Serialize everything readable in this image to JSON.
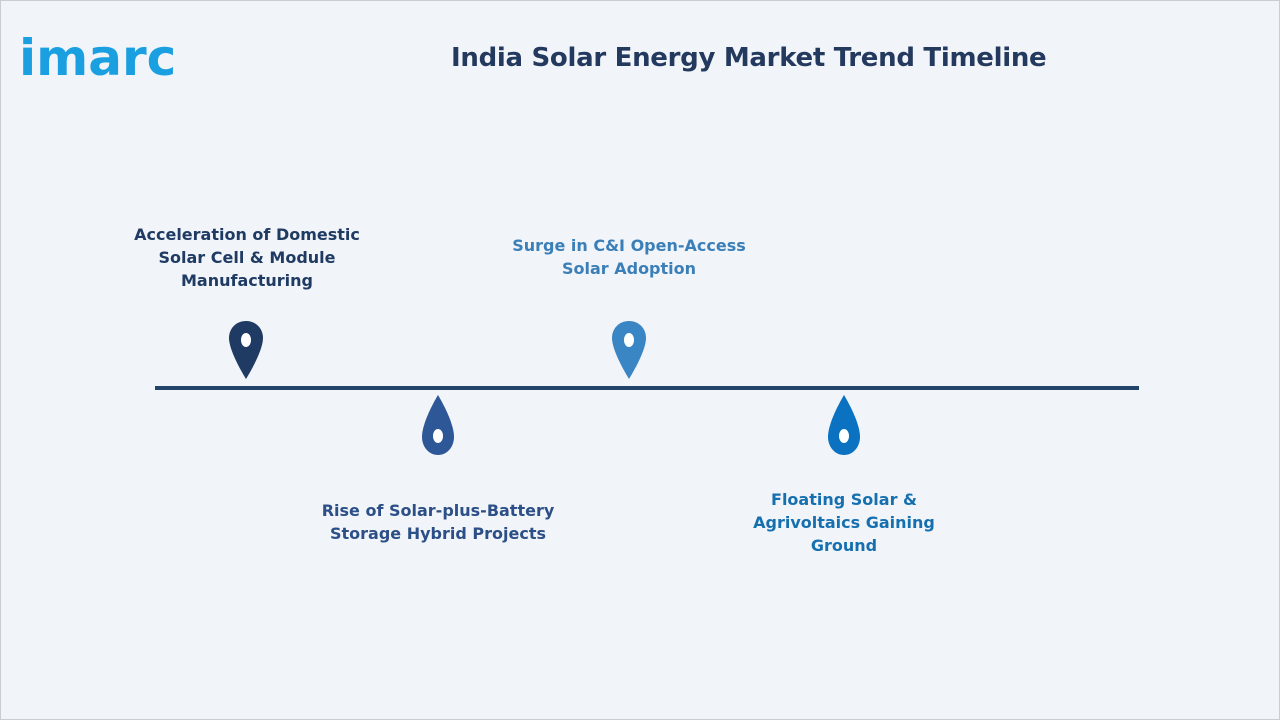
{
  "logo": {
    "text": "imarc",
    "color": "#1aa0e0"
  },
  "title": "India Solar Energy Market Trend Timeline",
  "timeline": {
    "line_color": "#23456a",
    "milestones": [
      {
        "id": "domestic-manufacturing",
        "position": "above",
        "marker": "pin",
        "color": "#1f3b63",
        "label_color": "#1f3b63",
        "lines": [
          "Acceleration of Domestic",
          "Solar Cell & Module",
          "Manufacturing"
        ]
      },
      {
        "id": "solar-battery-hybrid",
        "position": "below",
        "marker": "drop",
        "color": "#2e5797",
        "label_color": "#2b4f86",
        "lines": [
          "Rise of Solar-plus-Battery",
          "Storage Hybrid Projects"
        ]
      },
      {
        "id": "ci-open-access",
        "position": "above",
        "marker": "pin",
        "color": "#3a86c4",
        "label_color": "#3a7fb8",
        "lines": [
          "Surge in C&I Open-Access",
          "Solar Adoption"
        ]
      },
      {
        "id": "floating-agrivoltaics",
        "position": "below",
        "marker": "drop",
        "color": "#0a72c0",
        "label_color": "#1670b0",
        "lines": [
          "Floating Solar &",
          "Agrivoltaics Gaining",
          "Ground"
        ]
      }
    ]
  }
}
